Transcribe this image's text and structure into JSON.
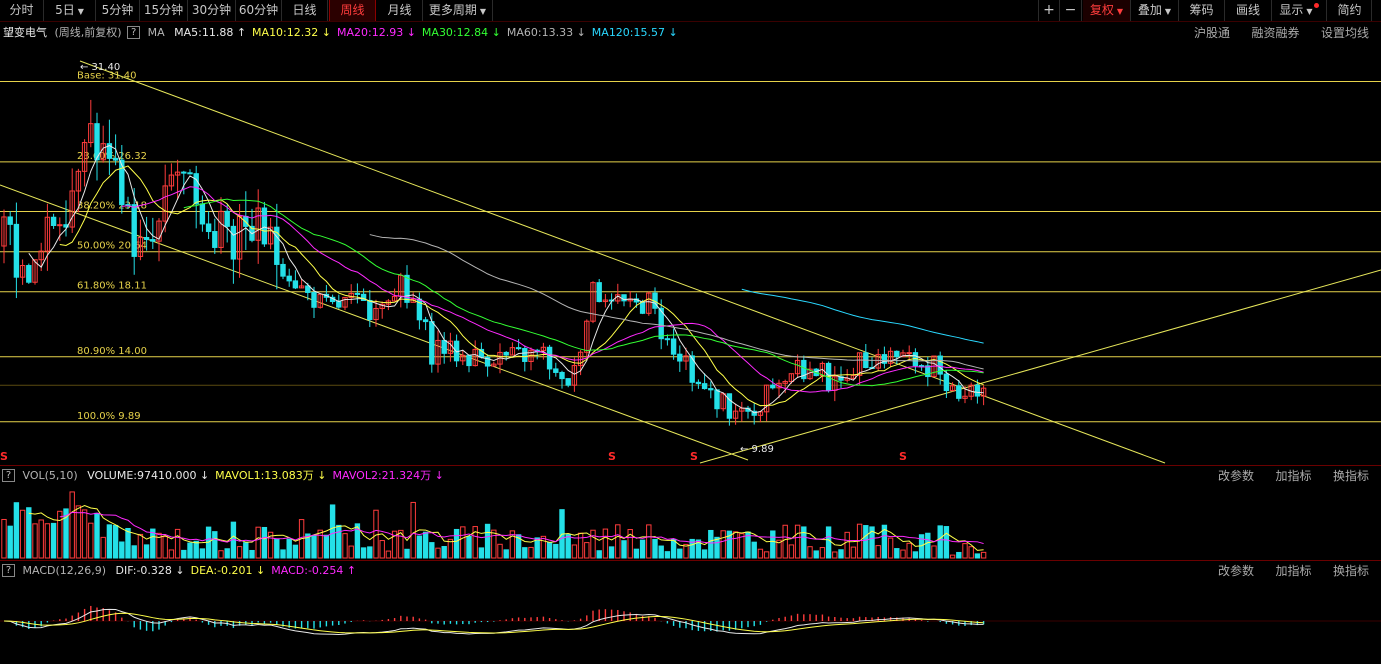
{
  "toolbar": {
    "periods": [
      "分时",
      "5日",
      "5分钟",
      "15分钟",
      "30分钟",
      "60分钟",
      "日线",
      "周线",
      "月线",
      "更多周期"
    ],
    "active_period": "周线",
    "right_buttons": {
      "plus": "+",
      "minus": "−",
      "fuquan": "复权",
      "diejia": "叠加",
      "chouma": "筹码",
      "huaxian": "画线",
      "xianshi": "显示",
      "jianyue": "简约"
    }
  },
  "main_panel": {
    "stock_name": "望变电气",
    "mode": "(周线,前复权)",
    "help": "?",
    "ma_name": "MA",
    "indicators": [
      {
        "text": "MA5:11.88",
        "arrow": "↑",
        "color": "#e8e8e8"
      },
      {
        "text": "MA10:12.32",
        "arrow": "↓",
        "color": "#ffff4a"
      },
      {
        "text": "MA20:12.93",
        "arrow": "↓",
        "color": "#ff2aff"
      },
      {
        "text": "MA30:12.84",
        "arrow": "↓",
        "color": "#33ff33"
      },
      {
        "text": "MA60:13.33",
        "arrow": "↓",
        "color": "#b4b4b4"
      },
      {
        "text": "MA120:15.57",
        "arrow": "↓",
        "color": "#2ad8ff"
      }
    ],
    "links": [
      "沪股通",
      "融资融券",
      "设置均线"
    ],
    "fib_levels": [
      {
        "label": "Base: 31.40",
        "value": 31.4
      },
      {
        "label": "23.60% 26.32",
        "value": 26.32
      },
      {
        "label": "38.20% 23.18",
        "value": 23.18
      },
      {
        "label": "50.00% 20.64",
        "value": 20.64
      },
      {
        "label": "61.80% 18.11",
        "value": 18.11
      },
      {
        "label": "80.90% 14.00",
        "value": 14.0
      },
      {
        "label": "100.0% 9.89",
        "value": 9.89
      }
    ],
    "high_marker": "31.40",
    "low_marker": "9.89"
  },
  "vol_panel": {
    "help": "?",
    "name": "VOL(5,10)",
    "indicators": [
      {
        "text": "VOLUME:97410.000",
        "arrow": "↓",
        "color": "#e8e8e8"
      },
      {
        "text": "MAVOL1:13.083万",
        "arrow": "↓",
        "color": "#ffff4a"
      },
      {
        "text": "MAVOL2:21.324万",
        "arrow": "↓",
        "color": "#ff2aff"
      }
    ],
    "links": [
      "改参数",
      "加指标",
      "换指标"
    ]
  },
  "macd_panel": {
    "help": "?",
    "name": "MACD(12,26,9)",
    "indicators": [
      {
        "text": "DIF:-0.328",
        "arrow": "↓",
        "color": "#e8e8e8"
      },
      {
        "text": "DEA:-0.201",
        "arrow": "↓",
        "color": "#ffff4a"
      },
      {
        "text": "MACD:-0.254",
        "arrow": "↑",
        "color": "#ff2aff"
      }
    ],
    "links": [
      "改参数",
      "加指标",
      "换指标"
    ]
  },
  "colors": {
    "up": "#ff3c3c",
    "down": "#24e0e8",
    "grid_red": "#6a0000",
    "fib_line": "#e6d24a",
    "trend_line": "#e6e65a"
  }
}
